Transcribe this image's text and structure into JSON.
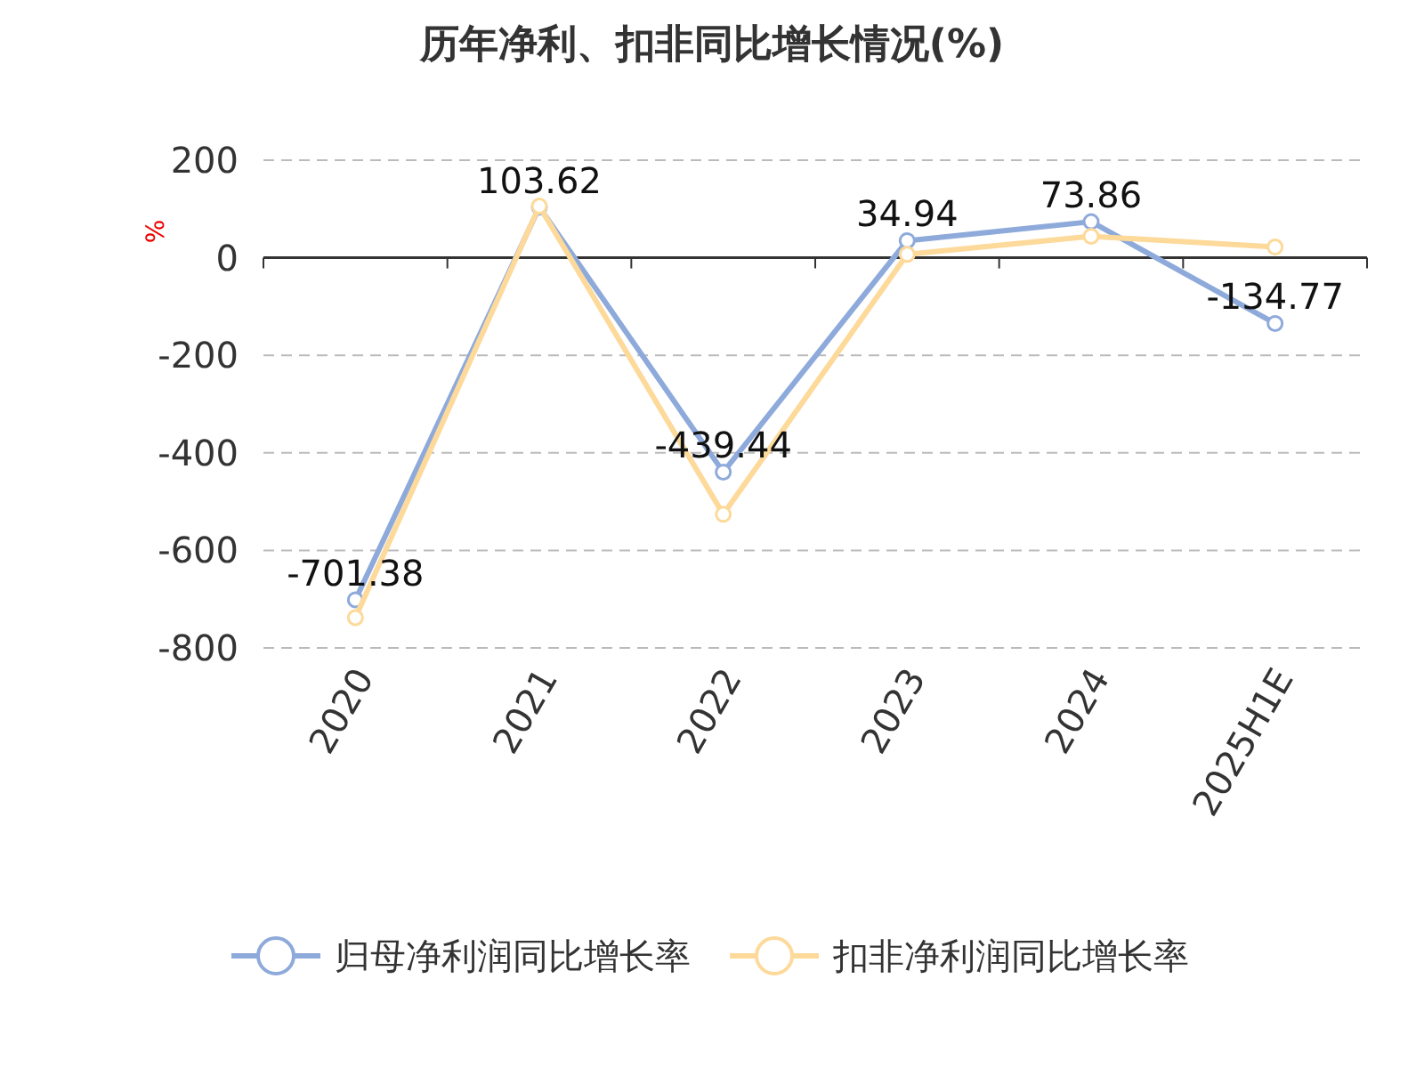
{
  "chart_data": {
    "type": "line",
    "title": "历年净利、扣非同比增长情况(%)",
    "ylabel": "%",
    "categories": [
      "2020",
      "2021",
      "2022",
      "2023",
      "2024",
      "2025H1E"
    ],
    "ylim": [
      -800,
      200
    ],
    "yticks": [
      -800,
      -600,
      -400,
      -200,
      0,
      200
    ],
    "grid": "y",
    "legend": "bottom",
    "marker": "circle",
    "line_style": "solid",
    "series": [
      {
        "name": "归母净利润同比增长率",
        "color": "#8eaadb",
        "values": [
          -701.38,
          103.62,
          -439.44,
          34.94,
          73.86,
          -134.77
        ],
        "value_labels": [
          "-701.38",
          "103.62",
          "-439.44",
          "34.94",
          "73.86",
          "-134.77"
        ]
      },
      {
        "name": "扣非净利润同比增长率",
        "color": "#fdd99a",
        "values": [
          -738,
          106,
          -526,
          7,
          44,
          22
        ]
      }
    ]
  }
}
